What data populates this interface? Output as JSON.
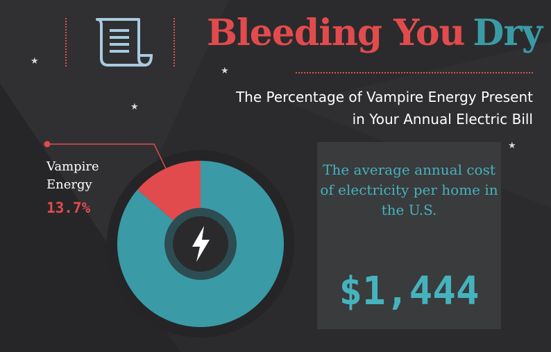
{
  "header": {
    "title_part1": "Bleeding You",
    "title_part2": "Dry",
    "subtitle_line1": "The Percentage of Vampire Energy Present",
    "subtitle_line2": "in Your Annual Electric Bill"
  },
  "chart_data": {
    "type": "pie",
    "title": "",
    "slices": [
      {
        "label": "Vampire Energy",
        "value": 13.7,
        "display": "13.7%",
        "color": "#e24b4d"
      },
      {
        "label": "",
        "value": 86.3,
        "color": "#3a9ba7"
      }
    ],
    "center_icon": "lightning-bolt-icon"
  },
  "callout": {
    "label": "Vampire Energy",
    "value": "13.7%"
  },
  "info_box": {
    "text": "The average annual cost of electricity per home in the U.S.",
    "amount": "$1,444"
  },
  "icons": {
    "document": "document-icon",
    "center": "lightning-bolt-icon",
    "decoration": "star-icon"
  },
  "colors": {
    "background": "#2b2b2d",
    "red": "#e24b4d",
    "teal": "#3a9ba7",
    "teal_text": "#45b3bd",
    "box": "#3a3b3d"
  }
}
